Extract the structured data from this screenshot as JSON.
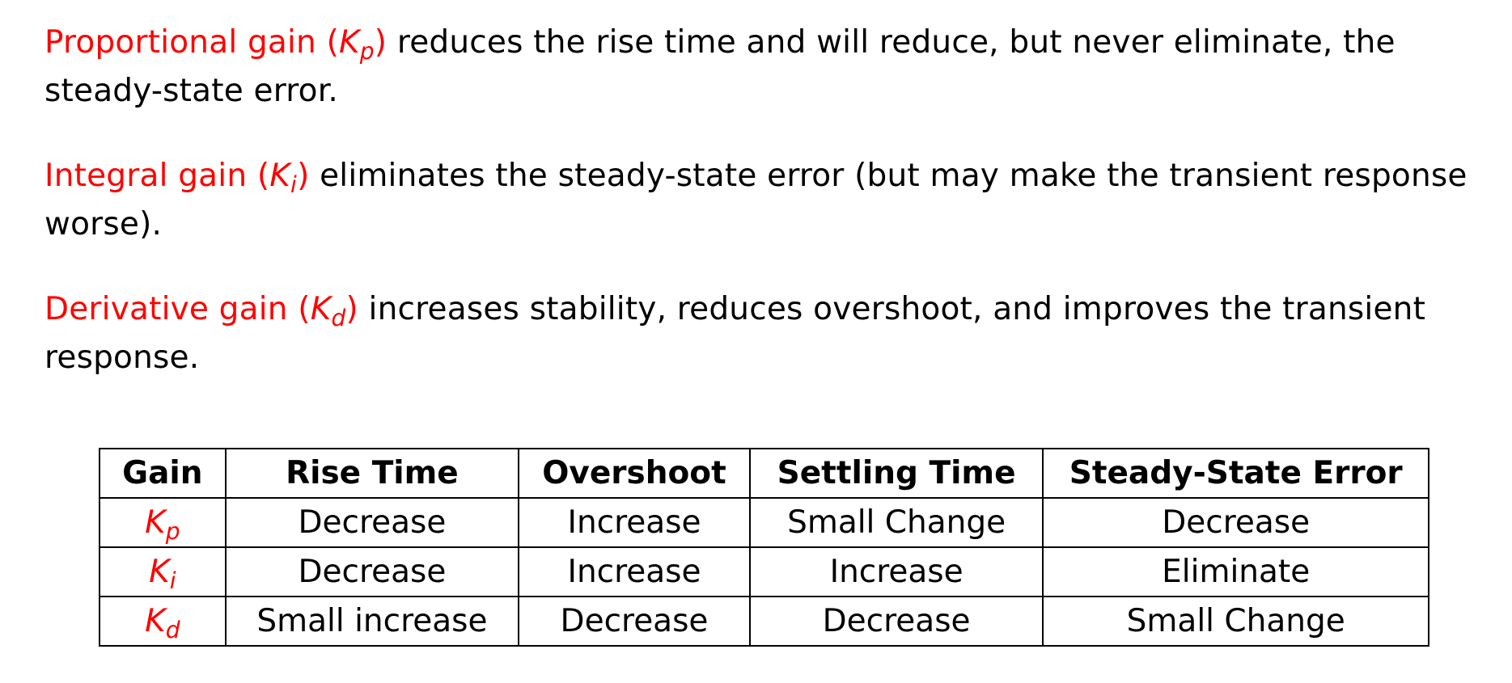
{
  "paragraphs": [
    {
      "term": "Proportional gain",
      "symbol": "K",
      "subscript": "p",
      "text": "reduces the rise time and will reduce, but never eliminate, the steady-state error."
    },
    {
      "term": "Integral gain",
      "symbol": "K",
      "subscript": "i",
      "text": "eliminates the steady-state error (but may make the transient response worse)."
    },
    {
      "term": "Derivative gain",
      "symbol": "K",
      "subscript": "d",
      "text": "increases stability, reduces overshoot, and improves the transient response."
    }
  ],
  "table": {
    "headers": [
      "Gain",
      "Rise Time",
      "Overshoot",
      "Settling Time",
      "Steady-State Error"
    ],
    "rows": [
      {
        "symbol": "K",
        "subscript": "p",
        "cells": [
          "Decrease",
          "Increase",
          "Small Change",
          "Decrease"
        ]
      },
      {
        "symbol": "K",
        "subscript": "i",
        "cells": [
          "Decrease",
          "Increase",
          "Increase",
          "Eliminate"
        ]
      },
      {
        "symbol": "K",
        "subscript": "d",
        "cells": [
          "Small increase",
          "Decrease",
          "Decrease",
          "Small Change"
        ]
      }
    ]
  },
  "colors": {
    "highlight": "#ff0000",
    "text": "#000000",
    "background": "#ffffff"
  }
}
